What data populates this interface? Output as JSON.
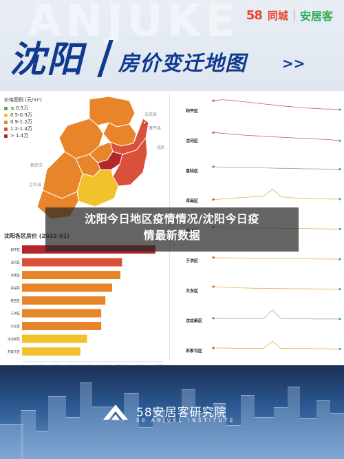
{
  "header": {
    "ghost_text": "ANJUKE",
    "logo_58": "58",
    "logo_58_name": "同城",
    "logo_anjuke": "安居客",
    "title_city": "沈阳",
    "title_sub": "房价变迁地图",
    "title_arrows": ">>"
  },
  "map": {
    "legend_title": "价格图例 (元/m²)",
    "legend": [
      {
        "label": "≤ 0.5万",
        "color": "#4caf50"
      },
      {
        "label": "0.5-0.9万",
        "color": "#f2c12e"
      },
      {
        "label": "0.9-1.2万",
        "color": "#e8842a"
      },
      {
        "label": "1.2-1.4万",
        "color": "#d9513b"
      },
      {
        "label": "> 1.4万",
        "color": "#b5262a"
      }
    ],
    "place_labels": [
      "法库县",
      "康平县",
      "新民市",
      "抚顺",
      "辽中县"
    ]
  },
  "bars": {
    "title": "沈阳各区房价 (2022-01)",
    "chart_data": {
      "type": "bar",
      "orientation": "horizontal",
      "title": "沈阳各区房价 (2022-01)",
      "categories": [
        "和平区",
        "沈河区",
        "浑南区",
        "皇姑区",
        "铁西区",
        "于洪区",
        "大东区",
        "沈北新区",
        "苏家屯区"
      ],
      "values": [
        16000,
        12000,
        11800,
        10800,
        10000,
        9500,
        9500,
        7800,
        7000
      ],
      "colors": [
        "#b5262a",
        "#d9513b",
        "#e8842a",
        "#e8842a",
        "#e8842a",
        "#e8842a",
        "#e8842a",
        "#f2c12e",
        "#f2c12e"
      ],
      "xlim": [
        0,
        17000
      ],
      "xticks": [
        "0",
        "2,000",
        "4,000",
        "6,000",
        "8,000",
        "10,000",
        "12,000",
        "14,000",
        "17,000"
      ]
    }
  },
  "trends": {
    "chart_data": {
      "type": "line",
      "note": "small multiples, one sparkline per district",
      "series": [
        {
          "name": "和平区",
          "values": [
            88,
            92,
            90,
            86,
            82,
            78,
            74,
            70,
            66,
            63,
            60,
            57,
            55,
            53,
            52,
            50
          ]
        },
        {
          "name": "沈河区",
          "values": [
            80,
            77,
            74,
            71,
            68,
            66,
            64,
            62,
            60,
            58,
            56,
            55,
            53,
            51,
            49,
            45
          ]
        },
        {
          "name": "皇姑区",
          "values": [
            62,
            60,
            59,
            58,
            58,
            57,
            57,
            56,
            55,
            55,
            54,
            53,
            53,
            52,
            52,
            51
          ]
        },
        {
          "name": "浑南区",
          "values": [
            50,
            52,
            54,
            58,
            60,
            62,
            64,
            95,
            62,
            58,
            56,
            55,
            54,
            53,
            52,
            52
          ]
        },
        {
          "name": "铁西区",
          "values": [
            60,
            59,
            58,
            58,
            57,
            57,
            56,
            56,
            55,
            55,
            54,
            54,
            53,
            53,
            52,
            52
          ]
        },
        {
          "name": "于洪区",
          "values": [
            58,
            57,
            57,
            56,
            56,
            55,
            55,
            54,
            54,
            54,
            53,
            53,
            52,
            52,
            52,
            51
          ]
        },
        {
          "name": "大东区",
          "values": [
            62,
            60,
            58,
            57,
            56,
            55,
            55,
            54,
            54,
            53,
            53,
            53,
            52,
            52,
            52,
            51
          ]
        },
        {
          "name": "沈北新区",
          "values": [
            55,
            55,
            54,
            54,
            54,
            54,
            54,
            90,
            54,
            53,
            53,
            53,
            52,
            52,
            52,
            52
          ]
        },
        {
          "name": "苏家屯区",
          "values": [
            56,
            56,
            55,
            55,
            55,
            55,
            55,
            85,
            55,
            54,
            54,
            54,
            53,
            53,
            52,
            52
          ]
        }
      ]
    }
  },
  "footer": {
    "inst_name": "58安居客研究院",
    "inst_en": "58 ANJUKE INSTITUTE"
  },
  "overlay": {
    "line1": "沈阳今日地区疫情情况/沈阳今日疫",
    "line2": "情最新数据"
  }
}
